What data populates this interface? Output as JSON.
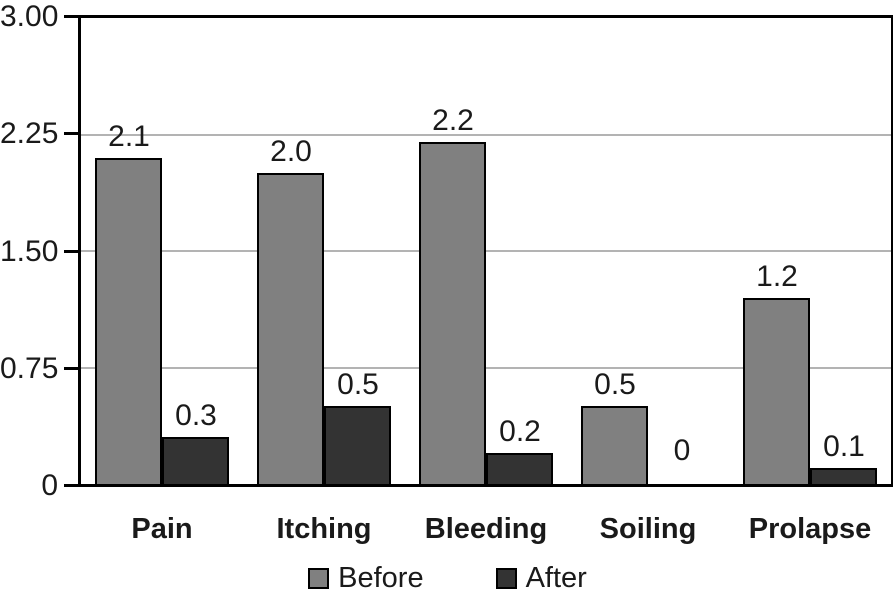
{
  "chart_data": {
    "type": "bar",
    "categories": [
      "Pain",
      "Itching",
      "Bleeding",
      "Soiling",
      "Prolapse"
    ],
    "series": [
      {
        "name": "Before",
        "color": "#808080",
        "values": [
          2.1,
          2.0,
          2.2,
          0.5,
          1.2
        ],
        "labels": [
          "2.1",
          "2.0",
          "2.2",
          "0.5",
          "1.2"
        ]
      },
      {
        "name": "After",
        "color": "#333333",
        "values": [
          0.3,
          0.5,
          0.2,
          0.0,
          0.1
        ],
        "labels": [
          "0.3",
          "0.5",
          "0.2",
          "0",
          "0.1"
        ]
      }
    ],
    "title": "",
    "xlabel": "",
    "ylabel": "",
    "ylim": [
      0,
      3.0
    ],
    "yticks": [
      "3.00",
      "2.25",
      "1.50",
      "0.75",
      "0"
    ],
    "ytick_values": [
      3.0,
      2.25,
      1.5,
      0.75,
      0
    ],
    "grid": true,
    "legend_position": "bottom"
  },
  "colors": {
    "grid": "#b3b3b3",
    "frame": "#000000",
    "text": "#1a1a1a",
    "background": "#ffffff"
  }
}
